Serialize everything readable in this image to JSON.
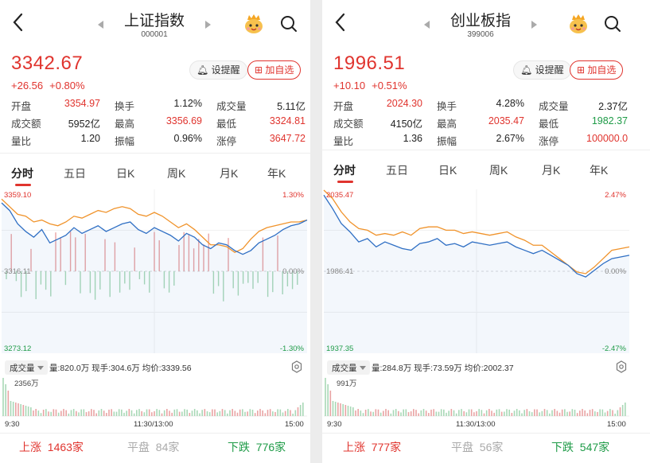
{
  "colors": {
    "up": "#e0342e",
    "down": "#1e9b47",
    "price_line": "#2f6fc4",
    "avg_line": "#f0932b",
    "flat": "#aaaaaa"
  },
  "panels": [
    {
      "title": "上证指数",
      "code": "000001",
      "price": "3342.67",
      "change": "+26.56",
      "change_pct": "+0.80%",
      "remind_label": "设提醒",
      "add_label": "加自选",
      "stats": [
        [
          [
            "开盘",
            "3354.97",
            "red"
          ],
          [
            "换手",
            "1.12%",
            ""
          ],
          [
            "成交量",
            "5.11亿",
            ""
          ]
        ],
        [
          [
            "成交额",
            "5952亿",
            ""
          ],
          [
            "最高",
            "3356.69",
            "red"
          ],
          [
            "最低",
            "3324.81",
            "red"
          ]
        ],
        [
          [
            "量比",
            "1.20",
            ""
          ],
          [
            "振幅",
            "0.96%",
            ""
          ],
          [
            "涨停",
            "3647.72",
            "red"
          ]
        ]
      ],
      "tabs": [
        "分时",
        "五日",
        "日K",
        "周K",
        "月K",
        "年K"
      ],
      "axis": {
        "high": "3359.10",
        "high_pct": "1.30%",
        "mid": "3316.11",
        "mid_pct": "0.00%",
        "low": "3273.12",
        "low_pct": "-1.30%"
      },
      "vol_selector": "成交量",
      "vol_info": "量:820.0万  现手:304.6万  均价:3339.56",
      "vol_max": "2356万",
      "times": [
        "9:30",
        "11:30/13:00",
        "15:00"
      ],
      "footer": {
        "up_label": "上涨",
        "up_count": "1463家",
        "flat_label": "平盘",
        "flat_count": "84家",
        "down_label": "下跌",
        "down_count": "776家"
      },
      "chart_data": {
        "type": "line",
        "series": [
          {
            "values": [
              3352,
              3348,
              3341,
              3337,
              3334,
              3338,
              3331,
              3333,
              3335,
              3339,
              3336,
              3338,
              3340,
              3337,
              3339,
              3341,
              3342,
              3338,
              3336,
              3339,
              3337,
              3335,
              3332,
              3336,
              3334,
              3330,
              3328,
              3331,
              3330,
              3327,
              3325,
              3327,
              3331,
              3333,
              3335,
              3338,
              3340,
              3341,
              3343
            ]
          },
          {
            "values": [
              3354,
              3350,
              3346,
              3345,
              3342,
              3343,
              3341,
              3340,
              3342,
              3345,
              3344,
              3346,
              3348,
              3347,
              3349,
              3350,
              3349,
              3346,
              3345,
              3347,
              3345,
              3342,
              3339,
              3341,
              3338,
              3334,
              3330,
              3330,
              3329,
              3326,
              3328,
              3333,
              3337,
              3339,
              3340,
              3341,
              3342,
              3342,
              3343
            ]
          }
        ]
      }
    },
    {
      "title": "创业板指",
      "code": "399006",
      "price": "1996.51",
      "change": "+10.10",
      "change_pct": "+0.51%",
      "remind_label": "设提醒",
      "add_label": "加自选",
      "stats": [
        [
          [
            "开盘",
            "2024.30",
            "red"
          ],
          [
            "换手",
            "4.28%",
            ""
          ],
          [
            "成交量",
            "2.37亿",
            ""
          ]
        ],
        [
          [
            "成交额",
            "4150亿",
            ""
          ],
          [
            "最高",
            "2035.47",
            "red"
          ],
          [
            "最低",
            "1982.37",
            "green"
          ]
        ],
        [
          [
            "量比",
            "1.36",
            ""
          ],
          [
            "振幅",
            "2.67%",
            ""
          ],
          [
            "涨停",
            "100000.0",
            "red"
          ]
        ]
      ],
      "tabs": [
        "分时",
        "五日",
        "日K",
        "周K",
        "月K",
        "年K"
      ],
      "axis": {
        "high": "2035.47",
        "high_pct": "2.47%",
        "mid": "1986.41",
        "mid_pct": "0.00%",
        "low": "1937.35",
        "low_pct": "-2.47%"
      },
      "vol_selector": "成交量",
      "vol_info": "量:284.8万  现手:73.59万  均价:2002.37",
      "vol_max": "991万",
      "times": [
        "9:30",
        "11:30/13:00",
        "15:00"
      ],
      "footer": {
        "up_label": "上涨",
        "up_count": "777家",
        "flat_label": "平盘",
        "flat_count": "56家",
        "down_label": "下跌",
        "down_count": "547家"
      },
      "chart_data": {
        "type": "line",
        "series": [
          {
            "values": [
              2032,
              2024,
              2015,
              2010,
              2004,
              2006,
              2001,
              2004,
              2002,
              2000,
              1999,
              2003,
              2004,
              2006,
              2002,
              2003,
              2001,
              2004,
              2003,
              2002,
              2003,
              2004,
              2001,
              1999,
              1997,
              1999,
              1996,
              1993,
              1990,
              1985,
              1983,
              1987,
              1991,
              1994,
              1995,
              1996
            ]
          },
          {
            "values": [
              2035,
              2030,
              2022,
              2016,
              2012,
              2011,
              2008,
              2009,
              2008,
              2010,
              2008,
              2012,
              2013,
              2013,
              2011,
              2011,
              2009,
              2010,
              2009,
              2008,
              2009,
              2010,
              2007,
              2005,
              2002,
              2002,
              1998,
              1994,
              1990,
              1986,
              1985,
              1989,
              1994,
              1999,
              2000,
              2001
            ]
          }
        ]
      }
    }
  ]
}
